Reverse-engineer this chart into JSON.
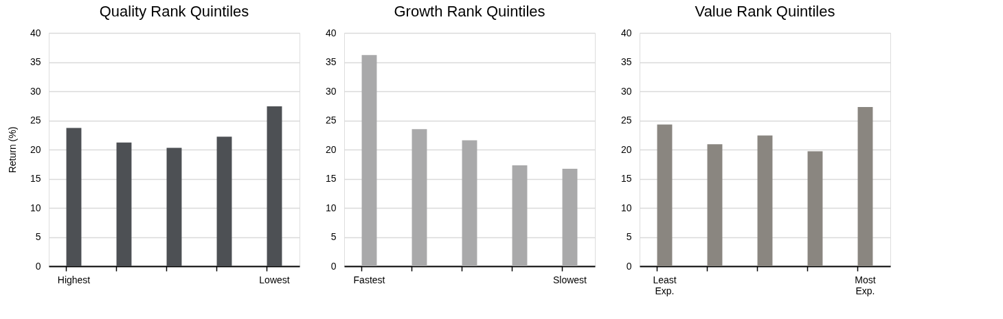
{
  "chart_data": [
    {
      "type": "bar",
      "title": "Quality Rank Quintiles",
      "ylabel": "Return (%)",
      "categories": [
        "Highest",
        null,
        null,
        null,
        "Lowest"
      ],
      "values": [
        23.7,
        21.2,
        20.3,
        22.2,
        27.4
      ],
      "color": "#4d5054",
      "ylim": [
        0,
        40
      ],
      "yticks": [
        0,
        5,
        10,
        15,
        20,
        25,
        30,
        35,
        40
      ],
      "grid": "y"
    },
    {
      "type": "bar",
      "title": "Growth Rank Quintiles",
      "categories": [
        "Fastest",
        null,
        null,
        null,
        "Slowest"
      ],
      "values": [
        36.2,
        23.5,
        21.6,
        17.3,
        16.7
      ],
      "color": "#a9a9aa",
      "ylim": [
        0,
        40
      ],
      "yticks": [
        0,
        5,
        10,
        15,
        20,
        25,
        30,
        35,
        40
      ],
      "grid": "y"
    },
    {
      "type": "bar",
      "title": "Value Rank Quintiles",
      "categories": [
        "Least Exp.",
        null,
        null,
        null,
        "Most Exp."
      ],
      "values": [
        24.3,
        20.9,
        22.4,
        19.7,
        27.3
      ],
      "color": "#8a8680",
      "ylim": [
        0,
        40
      ],
      "yticks": [
        0,
        5,
        10,
        15,
        20,
        25,
        30,
        35,
        40
      ],
      "grid": "y"
    }
  ]
}
